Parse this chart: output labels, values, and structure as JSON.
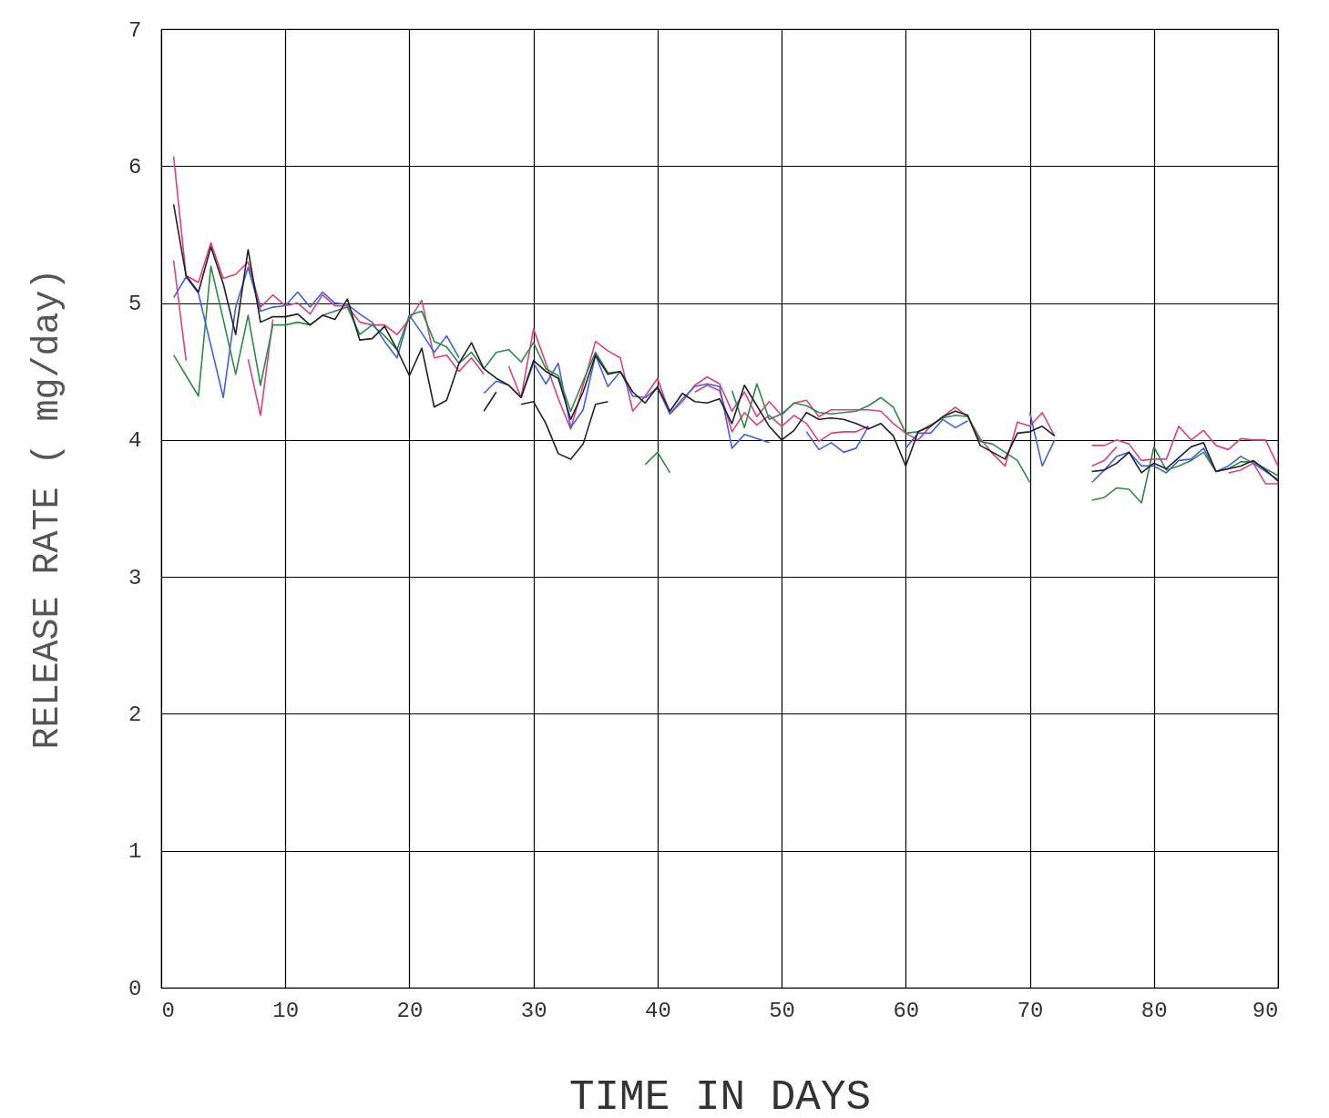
{
  "chart_data": {
    "type": "line",
    "xlabel": "TIME IN DAYS",
    "ylabel": "RELEASE RATE ( mg/day)",
    "x": [
      1,
      2,
      3,
      4,
      5,
      6,
      7,
      8,
      9,
      10,
      11,
      12,
      13,
      14,
      15,
      16,
      17,
      18,
      19,
      20,
      21,
      22,
      23,
      24,
      25,
      26,
      27,
      28,
      29,
      30,
      31,
      32,
      33,
      34,
      35,
      36,
      37,
      38,
      39,
      40,
      41,
      42,
      43,
      44,
      45,
      46,
      47,
      48,
      49,
      50,
      51,
      52,
      53,
      54,
      55,
      56,
      57,
      58,
      59,
      60,
      61,
      62,
      63,
      64,
      65,
      66,
      67,
      68,
      69,
      70,
      71,
      72,
      73,
      74,
      75,
      76,
      77,
      78,
      79,
      80,
      81,
      82,
      83,
      84,
      85,
      86,
      87,
      88,
      89,
      90
    ],
    "xlim": [
      0,
      90
    ],
    "xticks": [
      0,
      10,
      20,
      30,
      40,
      50,
      60,
      70,
      80,
      90
    ],
    "ylim": [
      0,
      7
    ],
    "yticks": [
      0,
      1,
      2,
      3,
      4,
      5,
      6,
      7
    ],
    "grid": true,
    "legend": false,
    "series": [
      {
        "color": "#e0407a",
        "values": [
          6.07,
          5.2,
          5.15,
          5.44,
          5.18,
          5.21,
          5.3,
          4.97,
          5.06,
          4.98,
          5.0,
          4.92,
          5.06,
          4.98,
          4.98,
          4.86,
          4.84,
          4.84,
          4.77,
          4.88,
          5.02,
          4.6,
          4.62,
          4.5,
          4.6,
          4.48,
          null,
          4.54,
          4.31,
          4.81,
          4.56,
          4.3,
          4.08,
          4.4,
          4.72,
          4.65,
          4.6,
          4.21,
          4.32,
          4.45,
          4.19,
          4.28,
          4.4,
          4.46,
          4.41,
          4.21,
          4.35,
          4.17,
          4.28,
          4.18,
          4.27,
          4.29,
          4.17,
          4.22,
          4.22,
          4.22,
          4.22,
          4.21,
          4.12,
          4.05,
          4.0,
          4.1,
          4.17,
          4.24,
          4.17,
          4.01,
          3.9,
          3.81,
          4.13,
          4.1,
          4.2,
          4.03,
          null,
          null,
          3.96,
          3.96,
          4.0,
          3.97,
          3.85,
          3.86,
          3.86,
          4.1,
          4.0,
          4.07,
          3.96,
          3.93,
          4.01,
          4.0,
          4.0,
          3.81
        ]
      },
      {
        "color": "#e0407a",
        "values": [
          5.31,
          4.58,
          null,
          null,
          null,
          null,
          4.59,
          4.18,
          4.88,
          null,
          null,
          null,
          null,
          null,
          null,
          null,
          null,
          null,
          null,
          null,
          null,
          null,
          null,
          null,
          null,
          null,
          null,
          null,
          null,
          null,
          null,
          null,
          null,
          null,
          null,
          null,
          null,
          null,
          null,
          null,
          null,
          null,
          4.35,
          4.4,
          4.36,
          4.06,
          4.2,
          4.11,
          4.18,
          4.1,
          4.18,
          4.12,
          3.99,
          4.05,
          4.06,
          4.06,
          4.1,
          null,
          null,
          null,
          null,
          null,
          null,
          null,
          null,
          null,
          null,
          null,
          null,
          null,
          null,
          null,
          null,
          null,
          3.81,
          3.85,
          3.95,
          null,
          null,
          null,
          null,
          null,
          null,
          null,
          null,
          3.76,
          3.78,
          3.83,
          3.68,
          3.68
        ]
      },
      {
        "color": "#4060e8",
        "values": [
          5.04,
          5.19,
          5.07,
          4.69,
          4.31,
          4.97,
          5.26,
          4.94,
          4.97,
          4.98,
          5.08,
          4.97,
          5.08,
          5.0,
          4.99,
          4.92,
          4.86,
          4.72,
          4.6,
          4.91,
          4.78,
          4.64,
          4.76,
          4.6,
          null,
          4.34,
          4.43,
          4.4,
          4.31,
          4.56,
          4.41,
          4.56,
          4.09,
          4.22,
          4.62,
          4.39,
          4.5,
          4.32,
          4.31,
          4.38,
          4.19,
          4.3,
          4.39,
          4.41,
          4.39,
          3.94,
          4.04,
          4.01,
          3.98,
          null,
          null,
          4.06,
          3.93,
          3.98,
          3.91,
          3.94,
          4.1,
          null,
          null,
          3.94,
          4.05,
          4.05,
          4.15,
          4.09,
          4.14,
          null,
          null,
          null,
          null,
          4.2,
          3.81,
          4.0,
          null,
          null,
          3.69,
          3.78,
          3.88,
          3.91,
          3.81,
          3.81,
          3.76,
          3.85,
          3.86,
          3.94,
          3.77,
          3.81,
          3.88,
          3.83,
          3.77,
          3.71
        ]
      },
      {
        "color": "#2e8b45",
        "values": [
          4.62,
          4.47,
          4.32,
          5.27,
          4.88,
          4.48,
          4.91,
          4.4,
          4.84,
          4.84,
          4.86,
          4.84,
          4.91,
          4.94,
          4.97,
          4.77,
          4.84,
          4.76,
          4.66,
          4.91,
          4.94,
          4.72,
          4.68,
          4.56,
          4.64,
          4.52,
          4.64,
          4.66,
          4.57,
          4.71,
          4.52,
          4.47,
          4.21,
          4.43,
          4.64,
          4.49,
          4.5,
          null,
          3.82,
          3.91,
          3.76,
          null,
          null,
          null,
          null,
          4.36,
          4.09,
          4.41,
          4.15,
          4.19,
          4.27,
          4.25,
          4.2,
          4.19,
          4.2,
          4.21,
          4.25,
          4.31,
          4.24,
          4.05,
          4.06,
          4.11,
          4.16,
          4.18,
          4.17,
          3.99,
          3.97,
          3.91,
          3.85,
          3.69,
          null,
          null,
          null,
          null,
          3.56,
          3.58,
          3.65,
          3.64,
          3.54,
          3.95,
          3.78,
          3.81,
          3.85,
          3.91,
          3.77,
          3.79,
          3.84,
          3.84,
          3.79,
          3.74
        ]
      },
      {
        "color": "#222222",
        "values": [
          5.72,
          5.2,
          5.08,
          5.41,
          5.14,
          4.77,
          5.39,
          4.86,
          4.9,
          4.9,
          4.92,
          4.84,
          4.91,
          4.88,
          5.03,
          4.73,
          4.74,
          4.83,
          4.66,
          4.47,
          4.67,
          4.24,
          4.29,
          4.56,
          4.71,
          4.52,
          4.45,
          4.4,
          4.31,
          4.58,
          4.5,
          4.45,
          4.15,
          4.35,
          4.62,
          4.48,
          4.5,
          4.35,
          4.27,
          4.39,
          4.21,
          4.34,
          4.28,
          4.27,
          4.3,
          4.12,
          4.4,
          4.25,
          4.1,
          4.0,
          4.07,
          4.2,
          4.15,
          4.16,
          4.15,
          4.12,
          4.08,
          4.12,
          4.03,
          3.81,
          4.06,
          4.1,
          4.17,
          4.21,
          4.18,
          3.96,
          3.91,
          3.86,
          4.05,
          4.06,
          4.1,
          4.03,
          null,
          null,
          3.77,
          3.78,
          3.83,
          3.91,
          3.76,
          3.83,
          3.79,
          3.87,
          3.95,
          3.98,
          3.77,
          3.79,
          3.81,
          3.85,
          3.78,
          3.7
        ]
      },
      {
        "color": "#222222",
        "values": [
          null,
          null,
          null,
          null,
          null,
          null,
          null,
          null,
          null,
          null,
          null,
          null,
          null,
          null,
          null,
          null,
          null,
          null,
          null,
          null,
          null,
          null,
          null,
          null,
          null,
          4.21,
          4.35,
          null,
          4.26,
          4.28,
          4.12,
          3.9,
          3.86,
          3.97,
          4.26,
          4.28,
          null,
          null,
          null,
          null,
          null,
          null,
          null,
          null,
          null,
          null,
          null,
          null,
          null,
          null,
          null,
          null,
          null,
          null,
          null,
          null,
          null,
          null,
          null,
          null,
          null,
          null,
          null,
          null,
          null,
          null,
          null,
          null,
          null,
          null,
          null,
          null,
          null,
          null,
          null,
          null,
          null,
          null,
          null,
          null,
          null,
          null,
          null,
          null,
          null,
          null,
          null,
          null,
          null,
          null
        ]
      }
    ]
  }
}
